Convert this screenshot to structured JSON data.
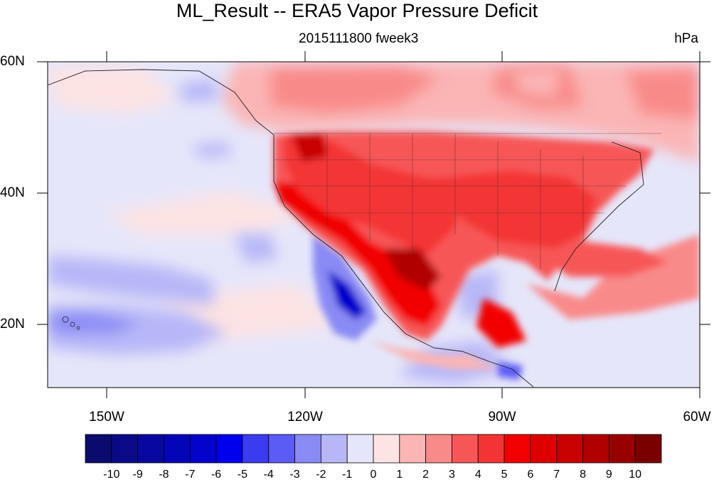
{
  "title": "ML_Result -- ERA5 Vapor Pressure Deficit",
  "subtitle_left": "2015111800 fweek3",
  "units": "hPa",
  "map": {
    "lon_range": [
      -160,
      -60
    ],
    "lat_range": [
      10,
      60
    ],
    "lat_tick_labels": [
      "60N",
      "40N",
      "20N"
    ],
    "lon_tick_labels": [
      "150W",
      "120W",
      "90W",
      "60W"
    ],
    "field": "Vapor Pressure Deficit anomaly",
    "features": [
      "coastlines",
      "US state boundaries"
    ]
  },
  "colorbar": {
    "labels": [
      "-10",
      "-9",
      "-8",
      "-7",
      "-6",
      "-5",
      "-4",
      "-3",
      "-2",
      "-1",
      "0",
      "1",
      "2",
      "3",
      "4",
      "5",
      "6",
      "7",
      "8",
      "9",
      "10"
    ],
    "colors": [
      "#0b0b6e",
      "#0a0a88",
      "#0808a0",
      "#0505b8",
      "#0303cc",
      "#0000ec",
      "#3b3bf0",
      "#5b5bf5",
      "#8a8af5",
      "#b7b7f8",
      "#e6e6fa",
      "#fde3e3",
      "#fbb5b5",
      "#f98a8a",
      "#f75656",
      "#f43434",
      "#f20000",
      "#de0000",
      "#c80000",
      "#b00000",
      "#980000",
      "#7a0000"
    ]
  }
}
